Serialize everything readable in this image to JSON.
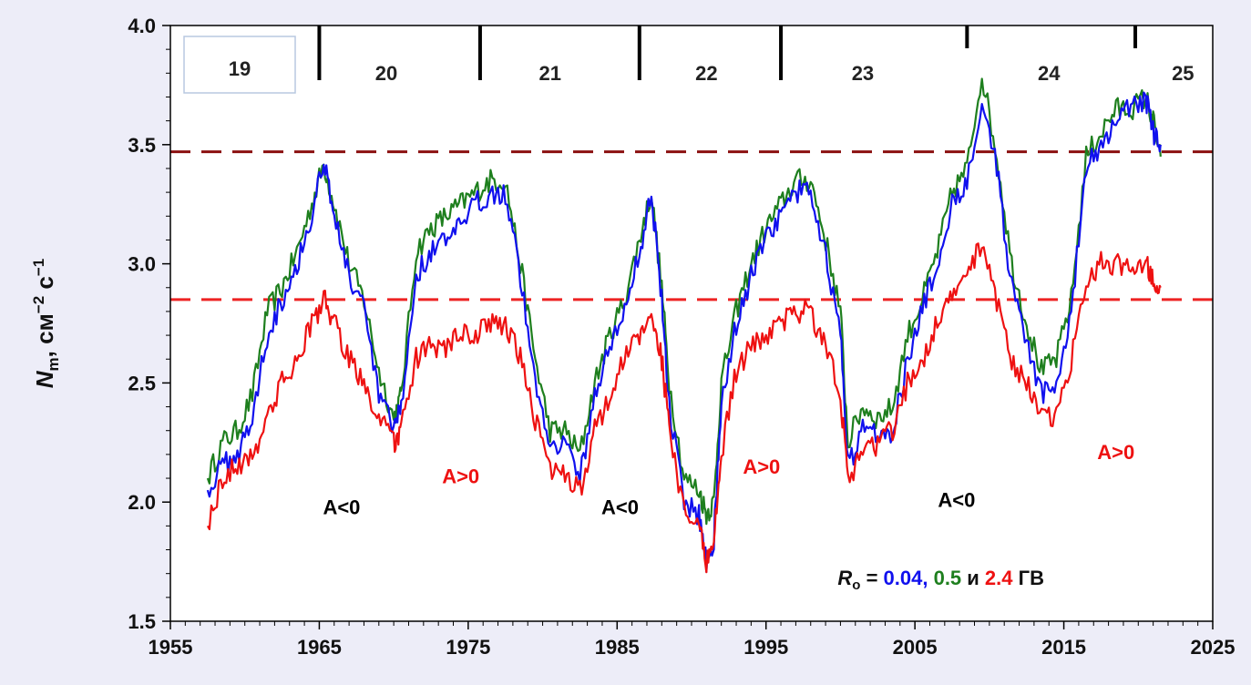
{
  "chart_data": {
    "type": "line",
    "title": "",
    "xlabel": "",
    "ylabel": {
      "symbol": "N",
      "subscript": "m",
      "unit": ", см",
      "exp1": "−2",
      "unit2": " с",
      "exp2": "−1"
    },
    "xlim": [
      1955,
      2025
    ],
    "ylim": [
      1.5,
      4.0
    ],
    "x_ticks": [
      1955,
      1965,
      1975,
      1985,
      1995,
      2005,
      2015,
      2025
    ],
    "y_ticks": [
      "1.5",
      "2.0",
      "2.5",
      "3.0",
      "3.5",
      "4.0"
    ],
    "grid": false,
    "series": [
      {
        "name": "0.5",
        "color": "#1e7f1e",
        "x": [
          1957.5,
          1958.5,
          1959.5,
          1960.5,
          1961.5,
          1962.5,
          1963.5,
          1964.5,
          1965.3,
          1966.0,
          1967.0,
          1968.0,
          1969.0,
          1970.0,
          1970.5,
          1971.5,
          1972.5,
          1973.5,
          1974.5,
          1975.5,
          1976.5,
          1977.5,
          1978.5,
          1979.5,
          1980.5,
          1981.5,
          1982.5,
          1983.5,
          1984.5,
          1985.5,
          1986.5,
          1987.3,
          1988.0,
          1988.5,
          1989.5,
          1990.5,
          1991.0,
          1991.5,
          1992.0,
          1993.0,
          1994.0,
          1995.0,
          1996.0,
          1997.0,
          1998.0,
          1999.0,
          2000.0,
          2000.5,
          2001.5,
          2002.5,
          2003.5,
          2004.5,
          2005.5,
          2006.5,
          2007.5,
          2008.5,
          2009.5,
          2010.5,
          2011.5,
          2012.5,
          2013.5,
          2014.5,
          2015.5,
          2016.5,
          2017.5,
          2018.5,
          2019.5,
          2020.5,
          2021.0,
          2021.5
        ],
        "values": [
          2.1,
          2.25,
          2.3,
          2.45,
          2.8,
          2.9,
          3.05,
          3.25,
          3.42,
          3.25,
          3.0,
          2.85,
          2.55,
          2.35,
          2.45,
          3.05,
          3.15,
          3.2,
          3.25,
          3.3,
          3.35,
          3.35,
          3.0,
          2.6,
          2.3,
          2.3,
          2.2,
          2.5,
          2.7,
          2.85,
          3.1,
          3.3,
          2.9,
          2.5,
          2.1,
          2.05,
          1.95,
          2.0,
          2.5,
          2.8,
          3.0,
          3.15,
          3.25,
          3.35,
          3.35,
          3.1,
          2.8,
          2.25,
          2.4,
          2.35,
          2.4,
          2.7,
          2.85,
          3.05,
          3.3,
          3.4,
          3.8,
          3.45,
          3.0,
          2.75,
          2.55,
          2.6,
          2.85,
          3.45,
          3.55,
          3.65,
          3.65,
          3.7,
          3.6,
          3.45
        ]
      },
      {
        "name": "0.04",
        "color": "#1010ee",
        "x": [
          1957.5,
          1958.5,
          1959.5,
          1960.5,
          1961.5,
          1962.5,
          1963.5,
          1964.5,
          1965.3,
          1966.0,
          1967.0,
          1968.0,
          1969.0,
          1970.0,
          1970.5,
          1971.5,
          1972.5,
          1973.5,
          1974.5,
          1975.5,
          1976.5,
          1977.5,
          1978.5,
          1979.5,
          1980.5,
          1981.5,
          1982.5,
          1983.5,
          1984.5,
          1985.5,
          1986.5,
          1987.3,
          1988.0,
          1988.5,
          1989.5,
          1990.5,
          1991.0,
          1991.5,
          1992.0,
          1993.0,
          1994.0,
          1995.0,
          1996.0,
          1997.0,
          1998.0,
          1999.0,
          2000.0,
          2000.5,
          2001.5,
          2002.5,
          2003.5,
          2004.5,
          2005.5,
          2006.5,
          2007.5,
          2008.5,
          2009.5,
          2010.5,
          2011.5,
          2012.5,
          2013.5,
          2014.5,
          2015.5,
          2016.5,
          2017.5,
          2018.5,
          2019.5,
          2020.5,
          2021.0,
          2021.5
        ],
        "values": [
          2.05,
          2.15,
          2.2,
          2.35,
          2.7,
          2.85,
          3.0,
          3.2,
          3.45,
          3.2,
          2.95,
          2.8,
          2.45,
          2.3,
          2.4,
          2.95,
          3.05,
          3.1,
          3.15,
          3.25,
          3.3,
          3.3,
          2.95,
          2.5,
          2.25,
          2.25,
          2.1,
          2.45,
          2.65,
          2.8,
          3.05,
          3.3,
          2.85,
          2.4,
          2.0,
          1.95,
          1.75,
          1.85,
          2.4,
          2.75,
          2.95,
          3.1,
          3.2,
          3.3,
          3.3,
          3.05,
          2.7,
          2.15,
          2.3,
          2.3,
          2.3,
          2.6,
          2.8,
          3.0,
          3.25,
          3.35,
          3.7,
          3.4,
          2.9,
          2.65,
          2.45,
          2.5,
          2.8,
          3.4,
          3.5,
          3.6,
          3.65,
          3.7,
          3.55,
          3.5
        ]
      },
      {
        "name": "2.4",
        "color": "#ee1111",
        "x": [
          1957.5,
          1958.5,
          1959.5,
          1960.5,
          1961.5,
          1962.5,
          1963.5,
          1964.5,
          1965.3,
          1966.0,
          1967.0,
          1968.0,
          1969.0,
          1970.0,
          1970.5,
          1971.5,
          1972.5,
          1973.5,
          1974.5,
          1975.5,
          1976.5,
          1977.5,
          1978.5,
          1979.5,
          1980.5,
          1981.5,
          1982.5,
          1983.5,
          1984.5,
          1985.5,
          1986.5,
          1987.3,
          1988.0,
          1988.5,
          1989.5,
          1990.5,
          1991.0,
          1991.5,
          1992.0,
          1993.0,
          1994.0,
          1995.0,
          1996.0,
          1997.0,
          1998.0,
          1999.0,
          2000.0,
          2000.5,
          2001.5,
          2002.5,
          2003.5,
          2004.5,
          2005.5,
          2006.5,
          2007.5,
          2008.5,
          2009.5,
          2010.5,
          2011.5,
          2012.5,
          2013.5,
          2014.5,
          2015.5,
          2016.5,
          2017.5,
          2018.5,
          2019.5,
          2020.5,
          2021.0,
          2021.5
        ],
        "values": [
          1.9,
          2.1,
          2.15,
          2.2,
          2.35,
          2.5,
          2.6,
          2.75,
          2.85,
          2.75,
          2.6,
          2.5,
          2.35,
          2.25,
          2.3,
          2.6,
          2.65,
          2.65,
          2.7,
          2.7,
          2.75,
          2.75,
          2.6,
          2.35,
          2.15,
          2.1,
          2.05,
          2.3,
          2.45,
          2.6,
          2.7,
          2.8,
          2.6,
          2.3,
          1.95,
          1.9,
          1.75,
          1.85,
          2.2,
          2.55,
          2.65,
          2.7,
          2.75,
          2.8,
          2.8,
          2.65,
          2.45,
          2.1,
          2.2,
          2.25,
          2.3,
          2.5,
          2.6,
          2.75,
          2.85,
          2.95,
          3.1,
          2.85,
          2.6,
          2.5,
          2.35,
          2.35,
          2.6,
          2.9,
          3.0,
          3.0,
          3.0,
          3.0,
          2.95,
          2.9
        ]
      }
    ],
    "reference_lines": [
      {
        "y": 3.47,
        "color": "#8b1010"
      },
      {
        "y": 2.85,
        "color": "#ee2222"
      }
    ],
    "cycle_markers": [
      1965,
      1975.8,
      1986.5,
      1996,
      2008.5,
      2019.8
    ],
    "cycle_labels": [
      {
        "text": "20",
        "x": 1969.5
      },
      {
        "text": "21",
        "x": 1980.5
      },
      {
        "text": "22",
        "x": 1991
      },
      {
        "text": "23",
        "x": 2001.5
      },
      {
        "text": "24",
        "x": 2014
      },
      {
        "text": "25",
        "x": 2023
      }
    ],
    "cycle19_label": "19",
    "polarity_labels": [
      {
        "text": "A<0",
        "x": 1966.5,
        "y": 1.95,
        "color": "#000000"
      },
      {
        "text": "A>0",
        "x": 1974.5,
        "y": 2.08,
        "color": "#ee1111"
      },
      {
        "text": "A<0",
        "x": 1985.2,
        "y": 1.95,
        "color": "#000000"
      },
      {
        "text": "A>0",
        "x": 1994.7,
        "y": 2.12,
        "color": "#ee1111"
      },
      {
        "text": "A<0",
        "x": 2007.8,
        "y": 1.98,
        "color": "#000000"
      },
      {
        "text": "A>0",
        "x": 2018.5,
        "y": 2.18,
        "color": "#ee1111"
      }
    ],
    "rigidity_label": {
      "symbol": "R",
      "subscript": "o",
      "eq": " = ",
      "v1": "0.04,",
      "v2": " 0.5",
      "and": " и",
      "v3": " 2.4",
      "unit": " ГВ"
    }
  }
}
